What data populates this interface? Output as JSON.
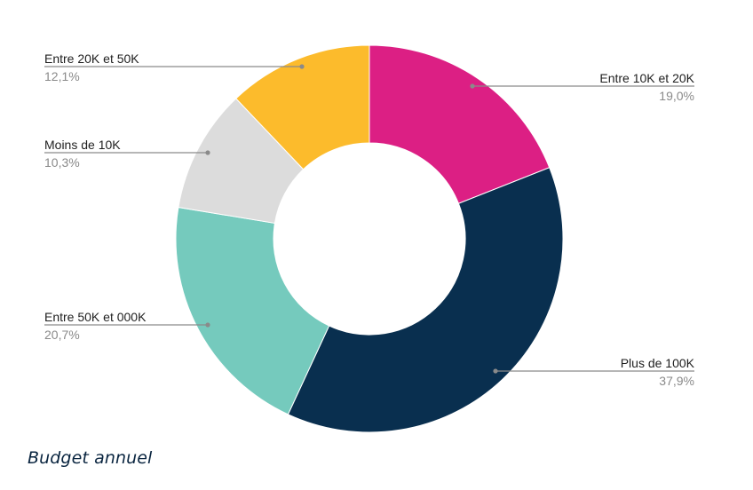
{
  "caption": "Budget annuel",
  "chart_data": {
    "type": "pie",
    "donut": true,
    "unit": "%",
    "slices": [
      {
        "name": "Entre 10K et 20K",
        "value": 19.0,
        "label": "19,0%",
        "color": "#dc1f84"
      },
      {
        "name": "Plus de 100K",
        "value": 37.9,
        "label": "37,9%",
        "color": "#092f4f"
      },
      {
        "name": "Entre 50K et 000K",
        "value": 20.7,
        "label": "20,7%",
        "color": "#75cabd"
      },
      {
        "name": "Moins de 10K",
        "value": 10.3,
        "label": "10,3%",
        "color": "#dcdcdc"
      },
      {
        "name": "Entre 20K et 50K",
        "value": 12.1,
        "label": "12,1%",
        "color": "#fcbb2c"
      }
    ],
    "start": "top",
    "direction": "clockwise",
    "legend": "none"
  }
}
